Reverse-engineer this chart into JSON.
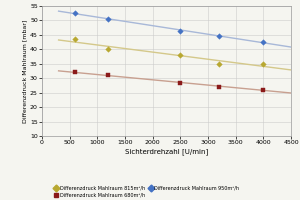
{
  "series": [
    {
      "label": "Differenzdruck Mahlraum 815m³/h",
      "line_color": "#d4c88a",
      "marker_color": "#b8a830",
      "marker": "D",
      "x": [
        600,
        1200,
        2500,
        3200,
        4000
      ],
      "y": [
        43.5,
        40.0,
        38.0,
        35.0,
        35.0
      ]
    },
    {
      "label": "Differenzdruck Mahlraum 950m³/h",
      "line_color": "#a8b8d8",
      "marker_color": "#4472c4",
      "marker": "D",
      "x": [
        600,
        1200,
        2500,
        3200,
        4000
      ],
      "y": [
        52.5,
        50.5,
        46.5,
        44.5,
        42.5
      ]
    },
    {
      "label": "Differenzdruck Mahlraum 680m³/h",
      "line_color": "#c8a090",
      "marker_color": "#8b1a1a",
      "marker": "s",
      "x": [
        600,
        1200,
        2500,
        3200,
        4000
      ],
      "y": [
        32.0,
        31.0,
        28.5,
        27.0,
        26.0
      ]
    }
  ],
  "xlabel": "Sichterdrehzahl [U/min]",
  "ylabel": "Differenzdruck Mahlraum [mbar]",
  "xlim": [
    0,
    4500
  ],
  "ylim": [
    10,
    55
  ],
  "xticks": [
    0,
    500,
    1000,
    1500,
    2000,
    2500,
    3000,
    3500,
    4000,
    4500
  ],
  "yticks": [
    10,
    15,
    20,
    25,
    30,
    35,
    40,
    45,
    50,
    55
  ],
  "background_color": "#f5f5f0",
  "grid_color": "#cccccc",
  "legend_order": [
    0,
    2,
    1
  ]
}
